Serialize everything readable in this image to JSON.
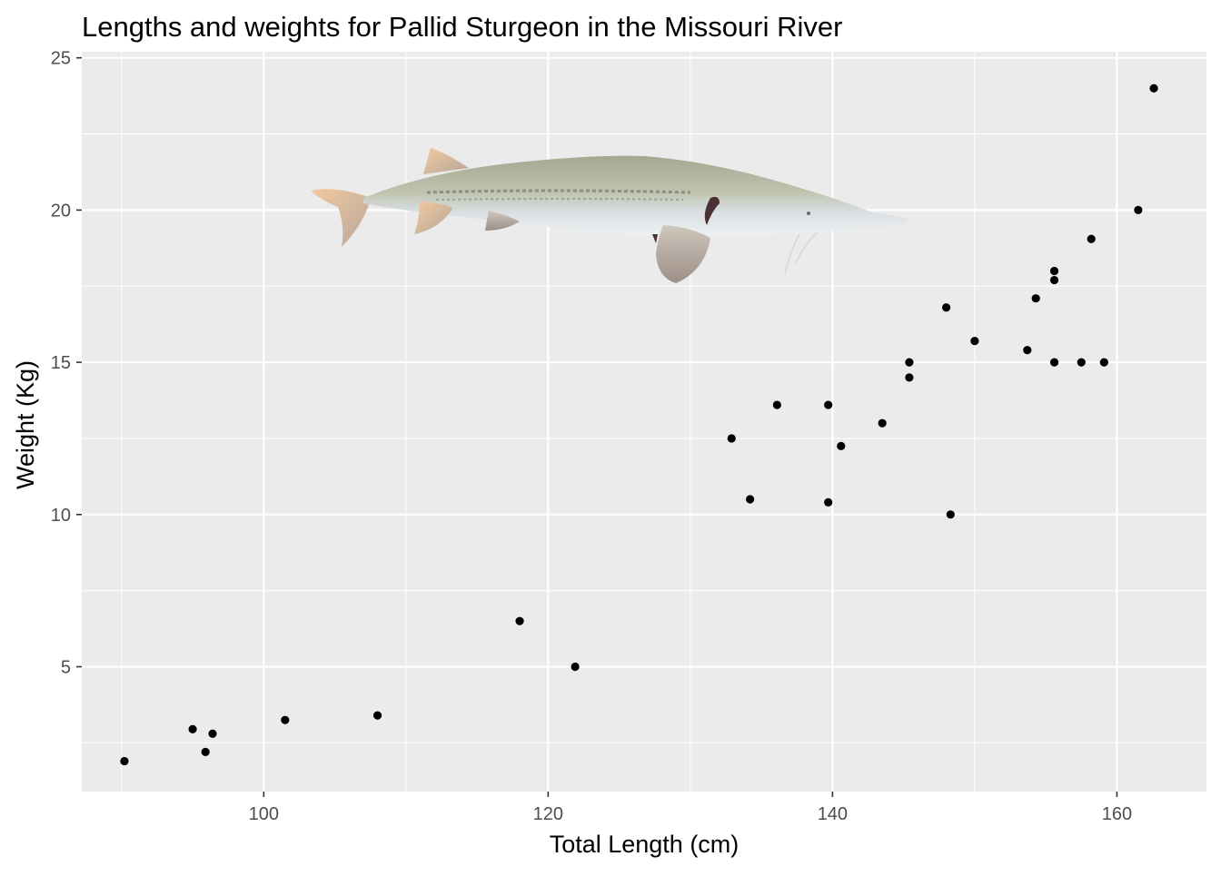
{
  "chart_data": {
    "type": "scatter",
    "title": "Lengths and weights for Pallid Sturgeon in the Missouri River",
    "xlabel": "Total Length (cm)",
    "ylabel": "Weight (Kg)",
    "xlim": [
      87.2,
      166.3
    ],
    "ylim": [
      0.9,
      25.2
    ],
    "xticks": [
      100,
      120,
      140,
      160
    ],
    "yticks": [
      5,
      10,
      15,
      20,
      25
    ],
    "grid": true,
    "background_color": "#ebebeb",
    "point_color": "#000000",
    "image": "pallid-sturgeon-illustration",
    "points": [
      {
        "x": 90.2,
        "y": 1.9
      },
      {
        "x": 95.0,
        "y": 2.95
      },
      {
        "x": 95.9,
        "y": 2.2
      },
      {
        "x": 96.4,
        "y": 2.8
      },
      {
        "x": 101.5,
        "y": 3.25
      },
      {
        "x": 108.0,
        "y": 3.4
      },
      {
        "x": 118.0,
        "y": 6.5
      },
      {
        "x": 121.9,
        "y": 5.0
      },
      {
        "x": 132.9,
        "y": 12.5
      },
      {
        "x": 134.2,
        "y": 10.5
      },
      {
        "x": 136.1,
        "y": 13.6
      },
      {
        "x": 139.7,
        "y": 13.6
      },
      {
        "x": 139.7,
        "y": 10.4
      },
      {
        "x": 140.6,
        "y": 12.25
      },
      {
        "x": 143.5,
        "y": 13.0
      },
      {
        "x": 145.4,
        "y": 15.0
      },
      {
        "x": 145.4,
        "y": 14.5
      },
      {
        "x": 148.0,
        "y": 16.8
      },
      {
        "x": 148.3,
        "y": 10.0
      },
      {
        "x": 150.0,
        "y": 15.7
      },
      {
        "x": 153.7,
        "y": 15.4
      },
      {
        "x": 154.3,
        "y": 17.1
      },
      {
        "x": 155.6,
        "y": 18.0
      },
      {
        "x": 155.6,
        "y": 17.7
      },
      {
        "x": 155.6,
        "y": 15.0
      },
      {
        "x": 157.5,
        "y": 15.0
      },
      {
        "x": 158.2,
        "y": 19.05
      },
      {
        "x": 159.1,
        "y": 15.0
      },
      {
        "x": 161.5,
        "y": 20.0
      },
      {
        "x": 162.6,
        "y": 24.0
      }
    ]
  }
}
